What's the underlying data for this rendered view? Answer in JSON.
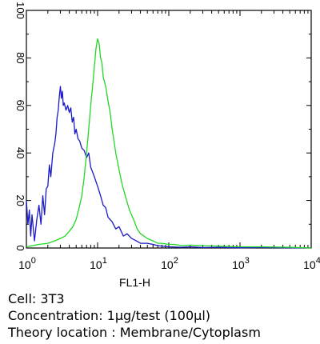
{
  "chart_data": {
    "type": "line",
    "title": "",
    "xlabel": "FL1-H",
    "ylabel": "",
    "x_scale": "log",
    "xlim": [
      1,
      10000
    ],
    "ylim": [
      0,
      100
    ],
    "x_ticks": [
      {
        "base": "10",
        "exp": "0"
      },
      {
        "base": "10",
        "exp": "1"
      },
      {
        "base": "10",
        "exp": "2"
      },
      {
        "base": "10",
        "exp": "3"
      },
      {
        "base": "10",
        "exp": "4"
      }
    ],
    "y_ticks": [
      "0",
      "20",
      "40",
      "60",
      "80",
      "100"
    ],
    "grid": false,
    "legend": "none",
    "series": [
      {
        "color": "#1a1ac8",
        "x": [
          1.0,
          1.05,
          1.1,
          1.15,
          1.2,
          1.3,
          1.4,
          1.5,
          1.6,
          1.7,
          1.8,
          1.9,
          2.0,
          2.1,
          2.2,
          2.35,
          2.5,
          2.6,
          2.7,
          2.8,
          2.9,
          3.0,
          3.1,
          3.2,
          3.3,
          3.4,
          3.6,
          3.8,
          4.0,
          4.2,
          4.4,
          4.6,
          4.8,
          5.0,
          5.3,
          5.6,
          6.0,
          6.5,
          7.0,
          7.5,
          8.0,
          8.5,
          9.0,
          10,
          11,
          12,
          13,
          14,
          16,
          18,
          20,
          23,
          26,
          30,
          35,
          40,
          50,
          60,
          70,
          80,
          100,
          150,
          200,
          300,
          500,
          1000,
          2000,
          5000,
          10000
        ],
        "y": [
          20,
          10,
          16,
          5,
          14,
          3,
          12,
          18,
          10,
          22,
          14,
          25,
          26,
          35,
          30,
          40,
          44,
          48,
          55,
          58,
          64,
          68,
          63,
          66,
          60,
          61,
          58,
          60,
          57,
          59,
          53,
          55,
          48,
          50,
          46,
          45,
          42,
          41,
          38,
          40,
          34,
          32,
          30,
          26,
          22,
          18,
          17,
          13,
          11,
          8,
          9,
          5,
          6,
          4,
          3,
          2,
          2,
          1.5,
          1,
          0.8,
          0.5,
          0.3,
          0.5,
          0.2,
          0.3,
          0.1,
          0.2,
          0.1,
          0
        ]
      },
      {
        "color": "#22d822",
        "x": [
          1.0,
          1.5,
          2.0,
          2.5,
          3.0,
          3.5,
          4.0,
          4.5,
          5.0,
          5.5,
          6.0,
          6.5,
          7.0,
          7.5,
          8.0,
          8.5,
          9.0,
          9.5,
          10.0,
          10.5,
          11.0,
          11.5,
          12.0,
          13,
          14,
          15,
          16,
          17,
          18,
          20,
          22,
          25,
          28,
          32,
          36,
          40,
          45,
          50,
          60,
          70,
          80,
          100,
          120,
          150,
          200,
          300,
          500,
          1000,
          2000,
          5000,
          10000
        ],
        "y": [
          0.5,
          1.5,
          2,
          3,
          4,
          5,
          7,
          9,
          12,
          17,
          22,
          30,
          40,
          50,
          60,
          68,
          76,
          84,
          88,
          86,
          80,
          78,
          72,
          68,
          62,
          57,
          50,
          45,
          40,
          33,
          27,
          21,
          16,
          12,
          8,
          6,
          5,
          4,
          3,
          2,
          2,
          1.5,
          1.5,
          1,
          1.2,
          1,
          0.8,
          0.5,
          0.5,
          0.3,
          0
        ]
      }
    ]
  },
  "captions": {
    "cell": "Cell: 3T3",
    "concentration": "Concentration: 1µg/test (100µl)",
    "location": "Theory location : Membrane/Cytoplasm"
  }
}
